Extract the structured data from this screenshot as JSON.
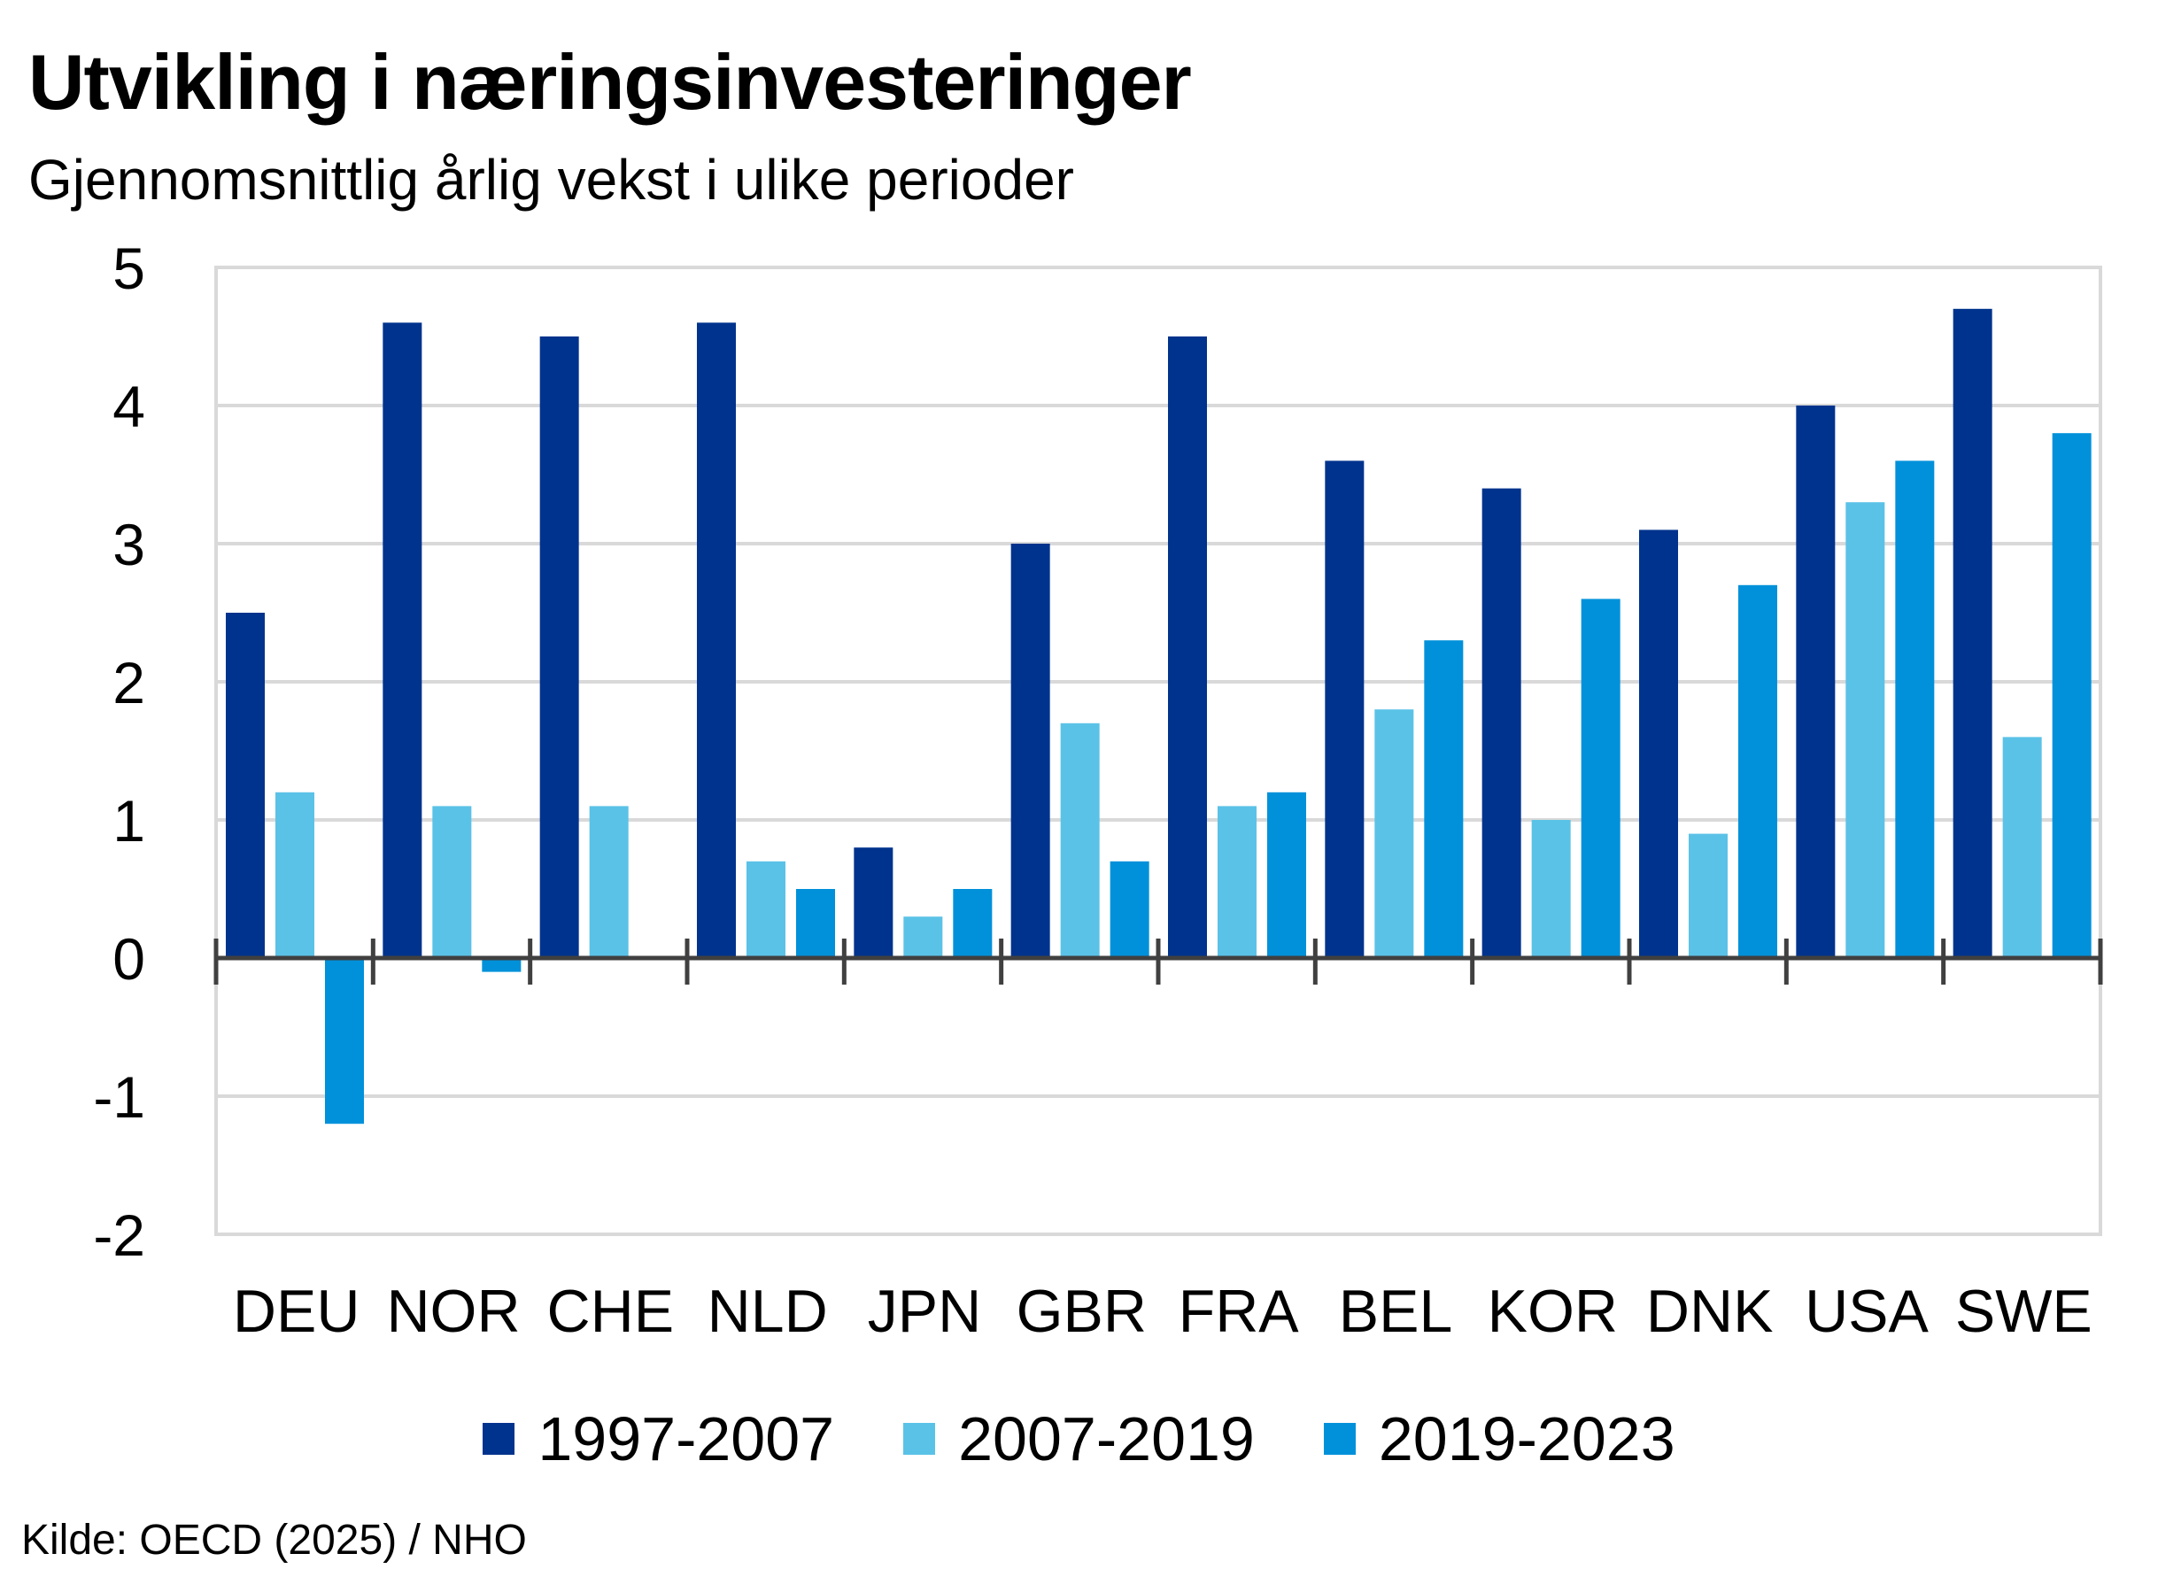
{
  "title": "Utvikling i næringsinvesteringer",
  "subtitle": "Gjennomsnittlig årlig vekst i ulike perioder",
  "source": "Kilde: OECD (2025)  / NHO",
  "colors": {
    "series_1": "#00338d",
    "series_2": "#5bc2e7",
    "series_3": "#0091da",
    "grid": "#d9d9d9",
    "axis": "#404040"
  },
  "chart_data": {
    "type": "bar",
    "categories": [
      "DEU",
      "NOR",
      "CHE",
      "NLD",
      "JPN",
      "GBR",
      "FRA",
      "BEL",
      "KOR",
      "DNK",
      "USA",
      "SWE"
    ],
    "series": [
      {
        "name": "1997-2007",
        "values": [
          2.5,
          4.6,
          4.5,
          4.6,
          0.8,
          3.0,
          4.5,
          3.6,
          3.4,
          3.1,
          4.0,
          4.7
        ]
      },
      {
        "name": "2007-2019",
        "values": [
          1.2,
          1.1,
          1.1,
          0.7,
          0.3,
          1.7,
          1.1,
          1.8,
          1.0,
          0.9,
          3.3,
          1.6
        ]
      },
      {
        "name": "2019-2023",
        "values": [
          -1.2,
          -0.1,
          null,
          0.5,
          0.5,
          0.7,
          1.2,
          2.3,
          2.6,
          2.7,
          3.6,
          3.8
        ]
      }
    ],
    "ylim": [
      -2,
      5
    ],
    "yticks": [
      -2,
      -1,
      0,
      1,
      2,
      3,
      4,
      5
    ],
    "xlabel": "",
    "ylabel": "",
    "grid": true,
    "legend_position": "bottom"
  }
}
